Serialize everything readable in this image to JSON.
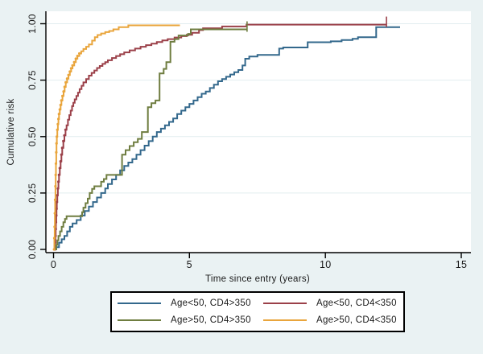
{
  "figure": {
    "background": "#eaf2f3",
    "plot_background": "#ffffff",
    "grid_color": "#e2edef",
    "axis_color": "#000000",
    "text_color": "#1a1a1a",
    "legend_background": "#ffffff",
    "legend_border": "#000000"
  },
  "chart_data": {
    "type": "line",
    "subtype": "step-cumulative-incidence",
    "title": "",
    "xlabel": "Time since entry (years)",
    "ylabel": "Cumulative risk",
    "xlim": [
      0,
      15
    ],
    "ylim": [
      0,
      1
    ],
    "xticks": [
      0,
      5,
      10,
      15
    ],
    "yticks": [
      {
        "v": 0.0,
        "label": "0.00"
      },
      {
        "v": 0.25,
        "label": "0.25"
      },
      {
        "v": 0.5,
        "label": "0.50"
      },
      {
        "v": 0.75,
        "label": "0.75"
      },
      {
        "v": 1.0,
        "label": "1.00"
      }
    ],
    "grid": "horizontal-at-yticks",
    "legend_position": "bottom-center",
    "series": [
      {
        "id": "age-under-50-cd4-over-350",
        "name": "Age<50,  CD4>350",
        "color": "#33688c",
        "marker_max_t": 0,
        "end_tick": false,
        "points": [
          [
            0.05,
            0
          ],
          [
            0.1,
            0.01
          ],
          [
            0.2,
            0.03
          ],
          [
            0.3,
            0.045
          ],
          [
            0.4,
            0.06
          ],
          [
            0.5,
            0.08
          ],
          [
            0.6,
            0.1
          ],
          [
            0.7,
            0.115
          ],
          [
            0.85,
            0.13
          ],
          [
            1.0,
            0.15
          ],
          [
            1.15,
            0.17
          ],
          [
            1.3,
            0.19
          ],
          [
            1.45,
            0.21
          ],
          [
            1.6,
            0.23
          ],
          [
            1.75,
            0.25
          ],
          [
            1.9,
            0.27
          ],
          [
            2.0,
            0.29
          ],
          [
            2.15,
            0.31
          ],
          [
            2.3,
            0.33
          ],
          [
            2.45,
            0.35
          ],
          [
            2.6,
            0.37
          ],
          [
            2.75,
            0.385
          ],
          [
            2.9,
            0.4
          ],
          [
            3.05,
            0.42
          ],
          [
            3.2,
            0.44
          ],
          [
            3.35,
            0.46
          ],
          [
            3.5,
            0.48
          ],
          [
            3.65,
            0.5
          ],
          [
            3.8,
            0.52
          ],
          [
            3.95,
            0.535
          ],
          [
            4.1,
            0.55
          ],
          [
            4.25,
            0.565
          ],
          [
            4.4,
            0.58
          ],
          [
            4.55,
            0.6
          ],
          [
            4.7,
            0.615
          ],
          [
            4.85,
            0.63
          ],
          [
            5.0,
            0.645
          ],
          [
            5.15,
            0.66
          ],
          [
            5.3,
            0.675
          ],
          [
            5.45,
            0.69
          ],
          [
            5.6,
            0.7
          ],
          [
            5.75,
            0.715
          ],
          [
            5.9,
            0.73
          ],
          [
            6.05,
            0.745
          ],
          [
            6.2,
            0.755
          ],
          [
            6.35,
            0.765
          ],
          [
            6.5,
            0.775
          ],
          [
            6.65,
            0.785
          ],
          [
            6.8,
            0.795
          ],
          [
            6.95,
            0.815
          ],
          [
            7.05,
            0.845
          ],
          [
            7.2,
            0.855
          ],
          [
            7.5,
            0.862
          ],
          [
            8.3,
            0.89
          ],
          [
            8.45,
            0.895
          ],
          [
            9.35,
            0.918
          ],
          [
            10.2,
            0.922
          ],
          [
            10.6,
            0.928
          ],
          [
            11.0,
            0.933
          ],
          [
            11.2,
            0.94
          ],
          [
            11.87,
            0.985
          ],
          [
            12.75,
            0.985
          ]
        ]
      },
      {
        "id": "age-under-50-cd4-under-350",
        "name": "Age<50,  CD4<350",
        "color": "#9b4049",
        "marker_max_t": 0.45,
        "end_tick": true,
        "points": [
          [
            0.05,
            0
          ],
          [
            0.06,
            0.03
          ],
          [
            0.07,
            0.06
          ],
          [
            0.08,
            0.09
          ],
          [
            0.09,
            0.12
          ],
          [
            0.1,
            0.15
          ],
          [
            0.11,
            0.18
          ],
          [
            0.12,
            0.21
          ],
          [
            0.14,
            0.24
          ],
          [
            0.16,
            0.27
          ],
          [
            0.18,
            0.3
          ],
          [
            0.2,
            0.33
          ],
          [
            0.23,
            0.36
          ],
          [
            0.26,
            0.39
          ],
          [
            0.29,
            0.42
          ],
          [
            0.32,
            0.45
          ],
          [
            0.36,
            0.48
          ],
          [
            0.4,
            0.505
          ],
          [
            0.44,
            0.53
          ],
          [
            0.48,
            0.55
          ],
          [
            0.53,
            0.575
          ],
          [
            0.58,
            0.595
          ],
          [
            0.63,
            0.615
          ],
          [
            0.68,
            0.635
          ],
          [
            0.73,
            0.65
          ],
          [
            0.78,
            0.665
          ],
          [
            0.84,
            0.68
          ],
          [
            0.9,
            0.695
          ],
          [
            0.96,
            0.71
          ],
          [
            1.03,
            0.725
          ],
          [
            1.1,
            0.74
          ],
          [
            1.2,
            0.755
          ],
          [
            1.3,
            0.77
          ],
          [
            1.4,
            0.782
          ],
          [
            1.5,
            0.793
          ],
          [
            1.6,
            0.804
          ],
          [
            1.7,
            0.813
          ],
          [
            1.8,
            0.822
          ],
          [
            1.9,
            0.83
          ],
          [
            2.0,
            0.838
          ],
          [
            2.15,
            0.848
          ],
          [
            2.3,
            0.857
          ],
          [
            2.45,
            0.865
          ],
          [
            2.6,
            0.873
          ],
          [
            2.8,
            0.882
          ],
          [
            3.0,
            0.89
          ],
          [
            3.2,
            0.898
          ],
          [
            3.4,
            0.905
          ],
          [
            3.6,
            0.912
          ],
          [
            3.8,
            0.919
          ],
          [
            4.0,
            0.926
          ],
          [
            4.2,
            0.932
          ],
          [
            4.45,
            0.939
          ],
          [
            4.7,
            0.945
          ],
          [
            4.9,
            0.951
          ],
          [
            5.1,
            0.96
          ],
          [
            5.35,
            0.972
          ],
          [
            5.5,
            0.98
          ],
          [
            6.2,
            0.988
          ],
          [
            7.1,
            0.996
          ],
          [
            12.25,
            0.996
          ]
        ]
      },
      {
        "id": "age-over-50-cd4-over-350",
        "name": "Age>50,  CD4>350",
        "color": "#6f7d40",
        "marker_max_t": 0,
        "end_tick": true,
        "points": [
          [
            0.07,
            0
          ],
          [
            0.1,
            0.02
          ],
          [
            0.14,
            0.04
          ],
          [
            0.18,
            0.06
          ],
          [
            0.24,
            0.08
          ],
          [
            0.3,
            0.1
          ],
          [
            0.36,
            0.12
          ],
          [
            0.42,
            0.135
          ],
          [
            0.48,
            0.147
          ],
          [
            1.0,
            0.147
          ],
          [
            1.05,
            0.165
          ],
          [
            1.1,
            0.185
          ],
          [
            1.18,
            0.205
          ],
          [
            1.26,
            0.225
          ],
          [
            1.33,
            0.25
          ],
          [
            1.42,
            0.268
          ],
          [
            1.5,
            0.28
          ],
          [
            1.75,
            0.3
          ],
          [
            1.85,
            0.312
          ],
          [
            1.95,
            0.33
          ],
          [
            2.48,
            0.33
          ],
          [
            2.52,
            0.42
          ],
          [
            2.65,
            0.44
          ],
          [
            2.8,
            0.458
          ],
          [
            2.95,
            0.475
          ],
          [
            3.1,
            0.49
          ],
          [
            3.25,
            0.52
          ],
          [
            3.45,
            0.52
          ],
          [
            3.47,
            0.63
          ],
          [
            3.6,
            0.648
          ],
          [
            3.75,
            0.66
          ],
          [
            3.88,
            0.66
          ],
          [
            3.9,
            0.78
          ],
          [
            4.05,
            0.8
          ],
          [
            4.15,
            0.83
          ],
          [
            4.28,
            0.83
          ],
          [
            4.3,
            0.92
          ],
          [
            4.45,
            0.932
          ],
          [
            4.6,
            0.948
          ],
          [
            4.95,
            0.955
          ],
          [
            5.05,
            0.975
          ],
          [
            7.12,
            0.975
          ]
        ]
      },
      {
        "id": "age-over-50-cd4-under-350",
        "name": "Age>50,  CD4<350",
        "color": "#e9a53c",
        "marker_max_t": 1.0,
        "end_tick": false,
        "points": [
          [
            0.02,
            0
          ],
          [
            0.03,
            0.05
          ],
          [
            0.04,
            0.1
          ],
          [
            0.05,
            0.16
          ],
          [
            0.06,
            0.22
          ],
          [
            0.07,
            0.28
          ],
          [
            0.08,
            0.33
          ],
          [
            0.09,
            0.38
          ],
          [
            0.1,
            0.43
          ],
          [
            0.11,
            0.47
          ],
          [
            0.12,
            0.5
          ],
          [
            0.14,
            0.53
          ],
          [
            0.16,
            0.555
          ],
          [
            0.18,
            0.578
          ],
          [
            0.2,
            0.6
          ],
          [
            0.23,
            0.62
          ],
          [
            0.26,
            0.64
          ],
          [
            0.29,
            0.66
          ],
          [
            0.33,
            0.68
          ],
          [
            0.37,
            0.7
          ],
          [
            0.41,
            0.72
          ],
          [
            0.45,
            0.74
          ],
          [
            0.5,
            0.757
          ],
          [
            0.55,
            0.773
          ],
          [
            0.6,
            0.788
          ],
          [
            0.65,
            0.802
          ],
          [
            0.7,
            0.815
          ],
          [
            0.76,
            0.83
          ],
          [
            0.82,
            0.845
          ],
          [
            0.88,
            0.857
          ],
          [
            0.95,
            0.868
          ],
          [
            1.02,
            0.878
          ],
          [
            1.1,
            0.888
          ],
          [
            1.2,
            0.898
          ],
          [
            1.3,
            0.908
          ],
          [
            1.42,
            0.925
          ],
          [
            1.52,
            0.94
          ],
          [
            1.62,
            0.95
          ],
          [
            1.75,
            0.957
          ],
          [
            1.9,
            0.963
          ],
          [
            2.05,
            0.968
          ],
          [
            2.2,
            0.975
          ],
          [
            2.4,
            0.985
          ],
          [
            2.75,
            0.993
          ],
          [
            4.65,
            0.993
          ]
        ]
      }
    ]
  }
}
